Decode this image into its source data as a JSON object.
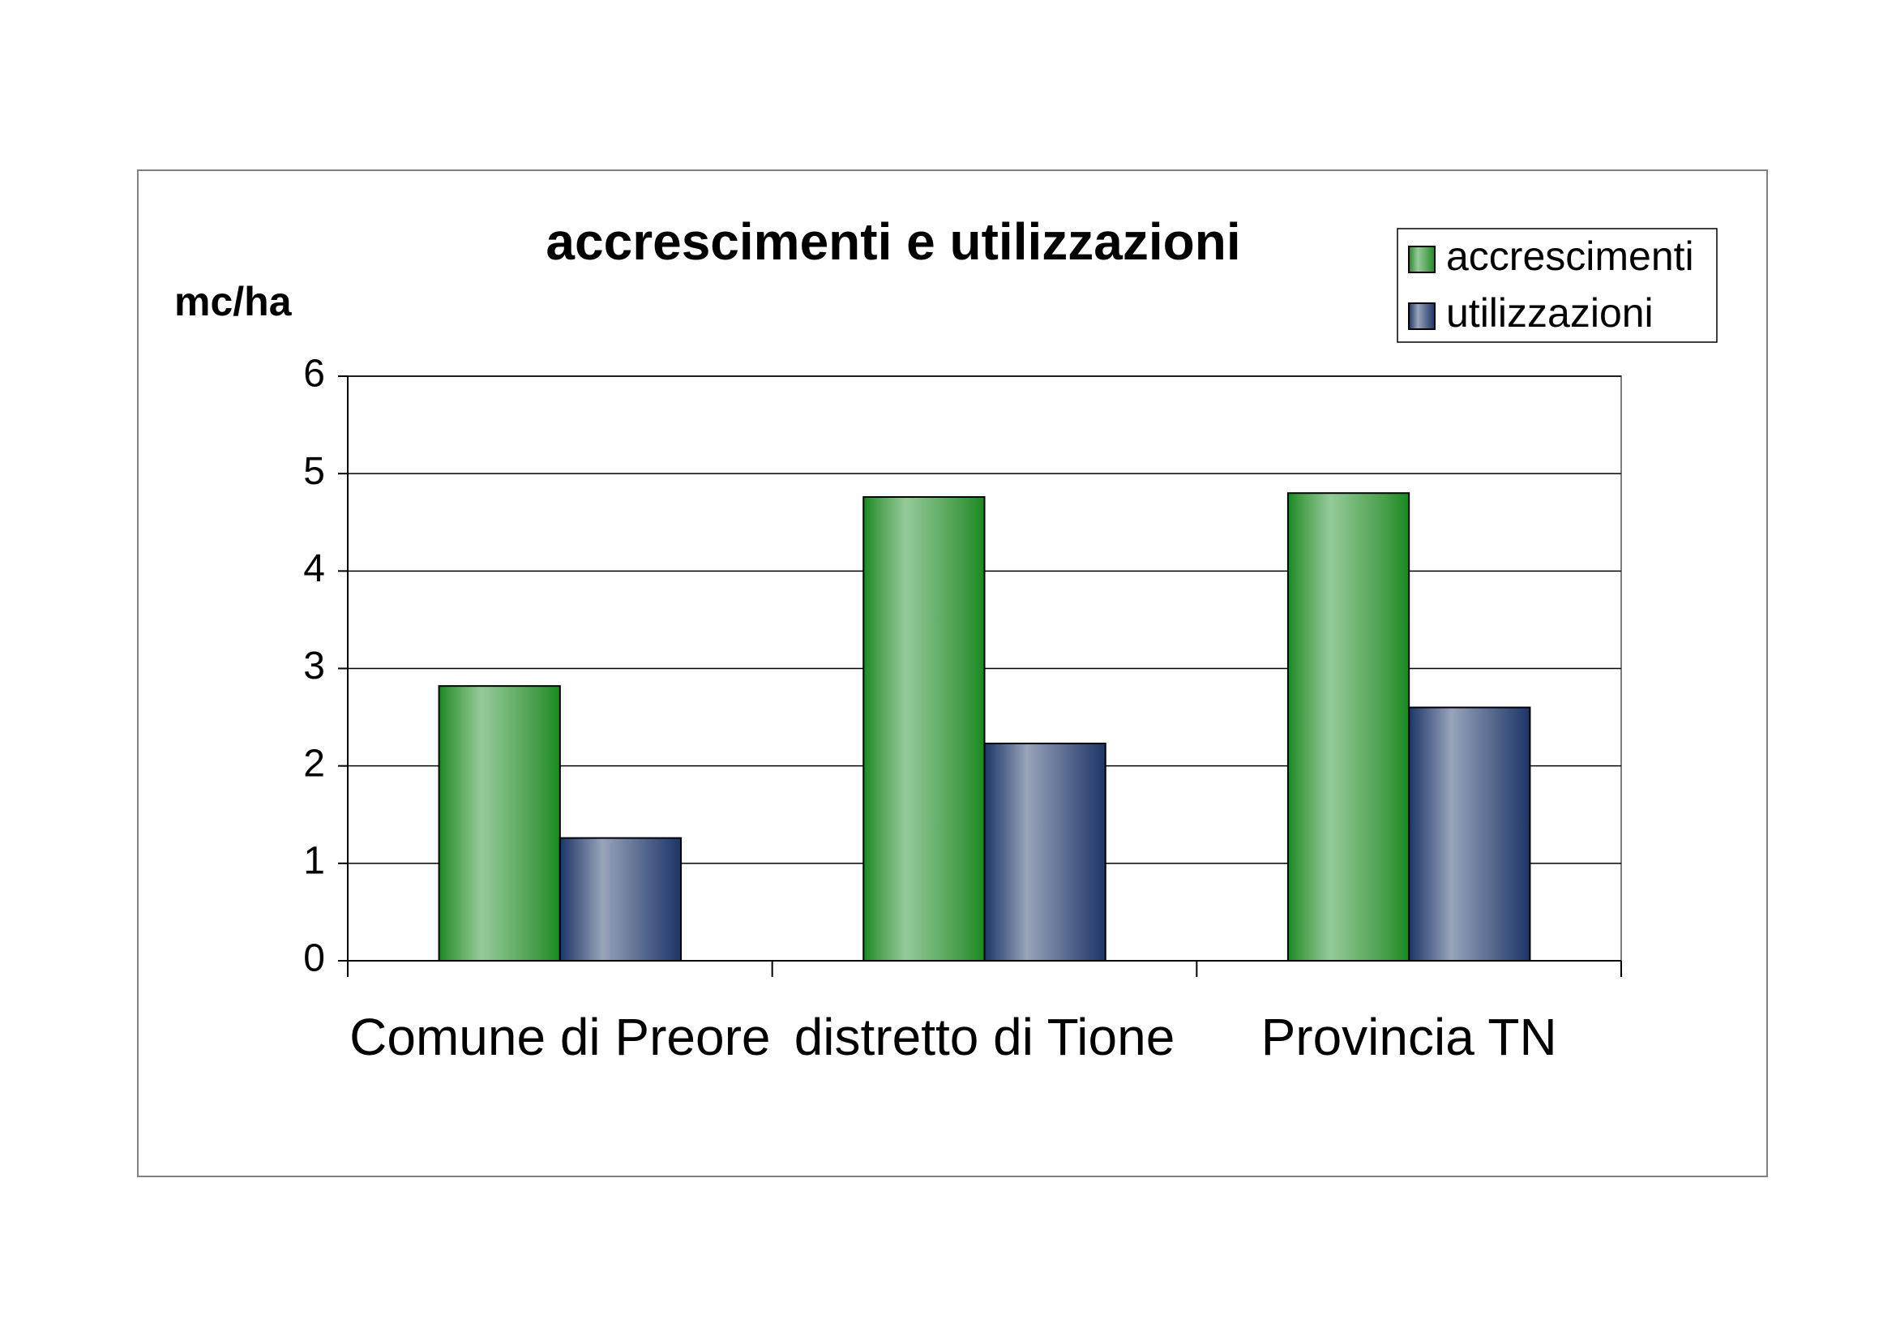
{
  "chart_data": {
    "type": "bar",
    "title": "accrescimenti e utilizzazioni",
    "y_label": "mc/ha",
    "categories": [
      "Comune di Preore",
      "distretto di Tione",
      "Provincia TN"
    ],
    "series": [
      {
        "name": "accrescimenti",
        "color": "#138a1e",
        "values": [
          2.82,
          4.76,
          4.8
        ]
      },
      {
        "name": "utilizzazioni",
        "color": "#1e3566",
        "values": [
          1.26,
          2.23,
          2.6
        ]
      }
    ],
    "ylim": [
      0,
      6
    ],
    "yticks": [
      0,
      1,
      2,
      3,
      4,
      5,
      6
    ],
    "grid": true,
    "legend": "top-right"
  }
}
